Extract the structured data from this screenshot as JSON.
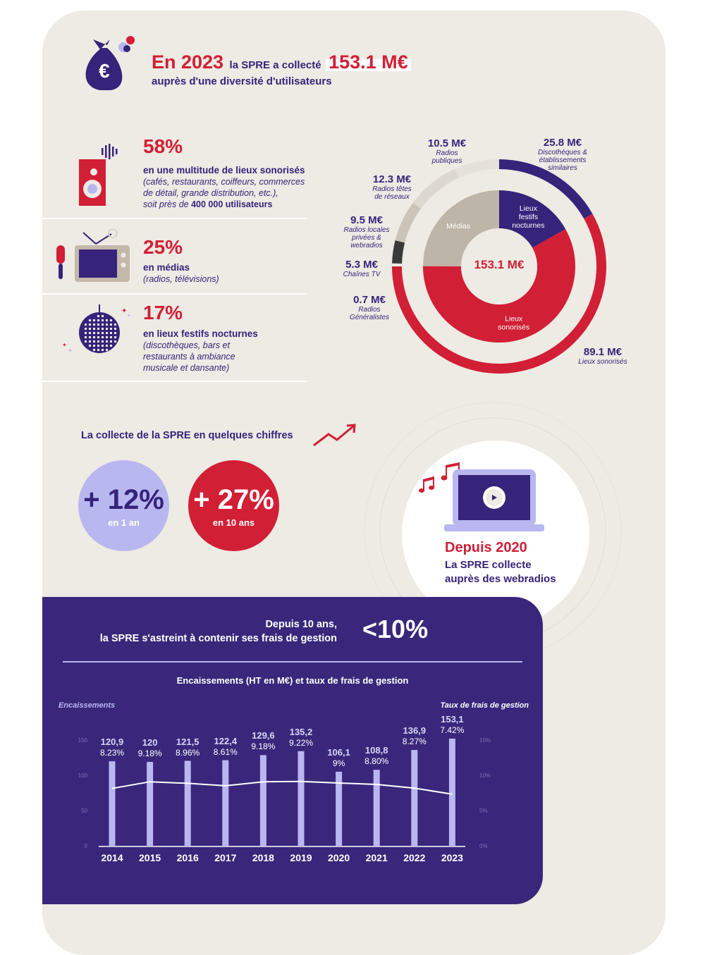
{
  "header": {
    "year_prefix": "En 2023",
    "middle": "la SPRE a collecté",
    "amount": "153.1 M€",
    "subline": "auprès d'une diversité d'utilisateurs"
  },
  "categories": [
    {
      "pct": "58%",
      "title": "en une multitude de lieux sonorisés",
      "desc_lines": [
        "(cafés, restaurants, coiffeurs, commerces",
        "de détail, grande distribution, etc.),"
      ],
      "extra_prefix": "soit près de ",
      "extra_bold": "400 000 utilisateurs"
    },
    {
      "pct": "25%",
      "title": "en médias",
      "desc_lines": [
        "(radios, télévisions)"
      ]
    },
    {
      "pct": "17%",
      "title": "en lieux festifs nocturnes",
      "desc_lines": [
        "(discothèques, bars et",
        "restaurants à ambiance",
        "musicale et dansante)"
      ]
    }
  ],
  "donut": {
    "center_label": "153.1 M€",
    "inner": [
      {
        "name": "Lieux festifs nocturnes",
        "lines": [
          "Lieux",
          "festifs",
          "nocturnes"
        ],
        "value": 25.8,
        "color": "#36237a"
      },
      {
        "name": "Lieux sonorisés",
        "lines": [
          "Lieux",
          "sonorisés"
        ],
        "value": 89.1,
        "color": "#d11f35"
      },
      {
        "name": "Médias",
        "lines": [
          "Médias"
        ],
        "value": 38.2,
        "color": "#bdb5a8"
      }
    ],
    "outer": [
      {
        "value_label": "25.8 M€",
        "name_lines": [
          "Discothèques &",
          "établissements",
          "similaires"
        ],
        "value": 25.8,
        "color": "#36237a"
      },
      {
        "value_label": "89.1 M€",
        "name_lines": [
          "Lieux sonorisés"
        ],
        "value": 89.1,
        "color": "#d11f35"
      },
      {
        "value_label": "0.7 M€",
        "name_lines": [
          "Radios",
          "Généralistes"
        ],
        "value": 0.7,
        "color": "#eeeae4"
      },
      {
        "value_label": "5.3 M€",
        "name_lines": [
          "Chaînes TV"
        ],
        "value": 5.3,
        "color": "#3a3a3a"
      },
      {
        "value_label": "9.5 M€",
        "name_lines": [
          "Radios locales",
          "privées &",
          "webradios"
        ],
        "value": 9.5,
        "color": "#cbc4b8"
      },
      {
        "value_label": "12.3 M€",
        "name_lines": [
          "Radios têtes",
          "de réseaux"
        ],
        "value": 12.3,
        "color": "#dcd7cf"
      },
      {
        "value_label": "10.5 M€",
        "name_lines": [
          "Radios",
          "publiques"
        ],
        "value": 10.5,
        "color": "#e5e1da"
      }
    ]
  },
  "stats": {
    "title": "La collecte de la SPRE en quelques chiffres",
    "items": [
      {
        "value": "+ 12%",
        "label": "en 1 an",
        "bg": "#b9b7f0",
        "fg": "#36237a",
        "label_color": "#ffffff"
      },
      {
        "value": "+ 27%",
        "label": "en 10 ans",
        "bg": "#d11f35",
        "fg": "#ffffff",
        "label_color": "#ffffff"
      }
    ]
  },
  "webradio": {
    "title": "Depuis 2020",
    "lines": [
      "La SPRE collecte",
      "auprès des webradios"
    ]
  },
  "panel": {
    "line1": "Depuis 10 ans,",
    "line2": "la SPRE s'astreint à contenir ses frais de gestion",
    "big": "<10%"
  },
  "chart_data": {
    "type": "bar",
    "title": "Encaissements (HT en M€) et taux de frais de gestion",
    "ylabel": "Encaissements",
    "y2label": "Taux de frais de gestion",
    "categories": [
      "2014",
      "2015",
      "2016",
      "2017",
      "2018",
      "2019",
      "2020",
      "2021",
      "2022",
      "2023"
    ],
    "series": [
      {
        "name": "Encaissements",
        "type": "bar",
        "values": [
          120.9,
          120,
          121.5,
          122.4,
          129.6,
          135.2,
          106.1,
          108.8,
          136.9,
          153.1
        ],
        "labels": [
          "120,9",
          "120",
          "121,5",
          "122,4",
          "129,6",
          "135,2",
          "106,1",
          "108,8",
          "136,9",
          "153,1"
        ],
        "color": "#b9b7f0"
      },
      {
        "name": "Taux de frais de gestion",
        "type": "line",
        "axis": "right",
        "values": [
          8.23,
          9.18,
          8.96,
          8.61,
          9.18,
          9.22,
          9,
          8.8,
          8.27,
          7.42
        ],
        "labels": [
          "8.23%",
          "9.18%",
          "8.96%",
          "8.61%",
          "9.18%",
          "9.22%",
          "9%",
          "8.80%",
          "8.27%",
          "7.42%"
        ],
        "color": "#ffffff"
      }
    ],
    "ylim": [
      0,
      150
    ],
    "yticks": [
      "0",
      "50",
      "100",
      "150"
    ],
    "y2lim": [
      0,
      15
    ],
    "y2ticks": [
      "0%",
      "5%",
      "10%",
      "15%"
    ],
    "grid": false
  }
}
